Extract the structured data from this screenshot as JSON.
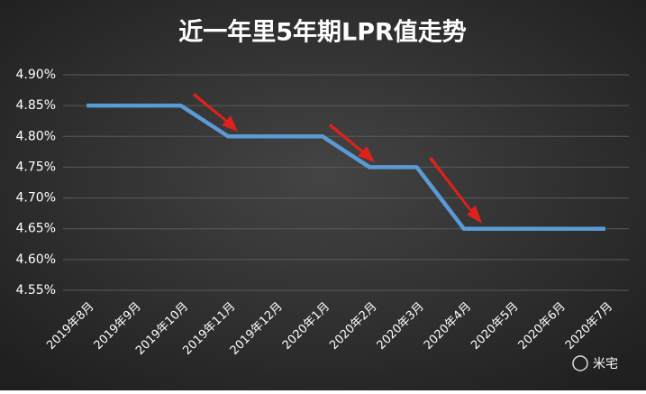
{
  "chart_data": {
    "type": "line",
    "title": "近一年里5年期LPR值走势",
    "categories": [
      "2019年8月",
      "2019年9月",
      "2019年10月",
      "2019年11月",
      "2019年12月",
      "2020年1月",
      "2020年2月",
      "2020年3月",
      "2020年4月",
      "2020年5月",
      "2020年6月",
      "2020年7月"
    ],
    "series": [
      {
        "name": "5年期LPR",
        "color": "#5b9bd5",
        "values": [
          4.85,
          4.85,
          4.85,
          4.8,
          4.8,
          4.8,
          4.75,
          4.75,
          4.65,
          4.65,
          4.65,
          4.65
        ]
      }
    ],
    "ylim": [
      4.55,
      4.9
    ],
    "yticks": [
      {
        "value": 4.55,
        "label": "4.55%"
      },
      {
        "value": 4.6,
        "label": "4.60%"
      },
      {
        "value": 4.65,
        "label": "4.65%"
      },
      {
        "value": 4.7,
        "label": "4.70%"
      },
      {
        "value": 4.75,
        "label": "4.75%"
      },
      {
        "value": 4.8,
        "label": "4.80%"
      },
      {
        "value": 4.85,
        "label": "4.85%"
      },
      {
        "value": 4.9,
        "label": "4.90%"
      }
    ],
    "grid": true
  },
  "watermark": "米宅"
}
